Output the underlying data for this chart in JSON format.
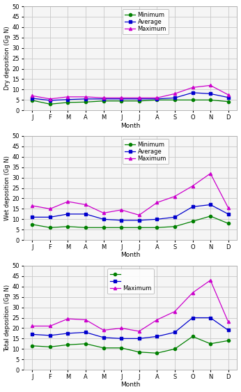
{
  "months": [
    "J",
    "F",
    "M",
    "A",
    "M",
    "J",
    "J",
    "A",
    "S",
    "O",
    "N",
    "D"
  ],
  "dry": {
    "min": [
      4.8,
      3.0,
      3.8,
      4.0,
      4.5,
      4.5,
      4.5,
      5.0,
      5.0,
      5.0,
      5.0,
      4.2
    ],
    "avg": [
      5.8,
      4.8,
      5.2,
      5.5,
      5.5,
      5.5,
      5.5,
      5.5,
      6.0,
      8.5,
      8.0,
      6.2
    ],
    "max": [
      7.0,
      5.5,
      6.5,
      6.5,
      6.0,
      6.0,
      6.0,
      6.0,
      8.0,
      11.0,
      12.0,
      7.5
    ]
  },
  "wet": {
    "min": [
      7.5,
      6.0,
      6.5,
      6.0,
      6.0,
      6.0,
      6.0,
      6.0,
      6.5,
      9.0,
      11.5,
      8.0
    ],
    "avg": [
      11.0,
      11.0,
      12.5,
      12.5,
      10.0,
      9.5,
      9.5,
      10.0,
      11.0,
      16.0,
      17.0,
      12.5
    ],
    "max": [
      16.5,
      15.0,
      18.5,
      17.0,
      13.0,
      14.5,
      12.0,
      18.0,
      21.0,
      26.0,
      32.0,
      15.5
    ]
  },
  "total": {
    "min": [
      11.5,
      11.0,
      12.0,
      12.5,
      10.5,
      10.5,
      8.5,
      8.0,
      10.0,
      16.0,
      12.5,
      14.0
    ],
    "avg": [
      17.0,
      16.5,
      17.5,
      18.0,
      15.5,
      15.0,
      15.0,
      16.0,
      18.0,
      25.0,
      25.0,
      19.0
    ],
    "max": [
      21.0,
      21.0,
      24.5,
      24.0,
      19.0,
      20.0,
      18.5,
      24.0,
      28.0,
      37.0,
      43.0,
      23.0
    ]
  },
  "color_min": "#008000",
  "color_avg": "#0000cd",
  "color_max": "#cc00cc",
  "ylim": [
    0,
    50
  ],
  "yticks": [
    0,
    5,
    10,
    15,
    20,
    25,
    30,
    35,
    40,
    45,
    50
  ],
  "ylabel_dry": "Dry deposition (Gg N)",
  "ylabel_wet": "Wet deposition (Gg N)",
  "ylabel_total": "Total deposition (Gg N)",
  "xlabel": "Month",
  "legend_labels": [
    "Minimum",
    "Average",
    "Maximum"
  ],
  "bg_color": "#f5f5f5",
  "grid_color": "#c8c8c8",
  "spine_color": "#aaaaaa"
}
